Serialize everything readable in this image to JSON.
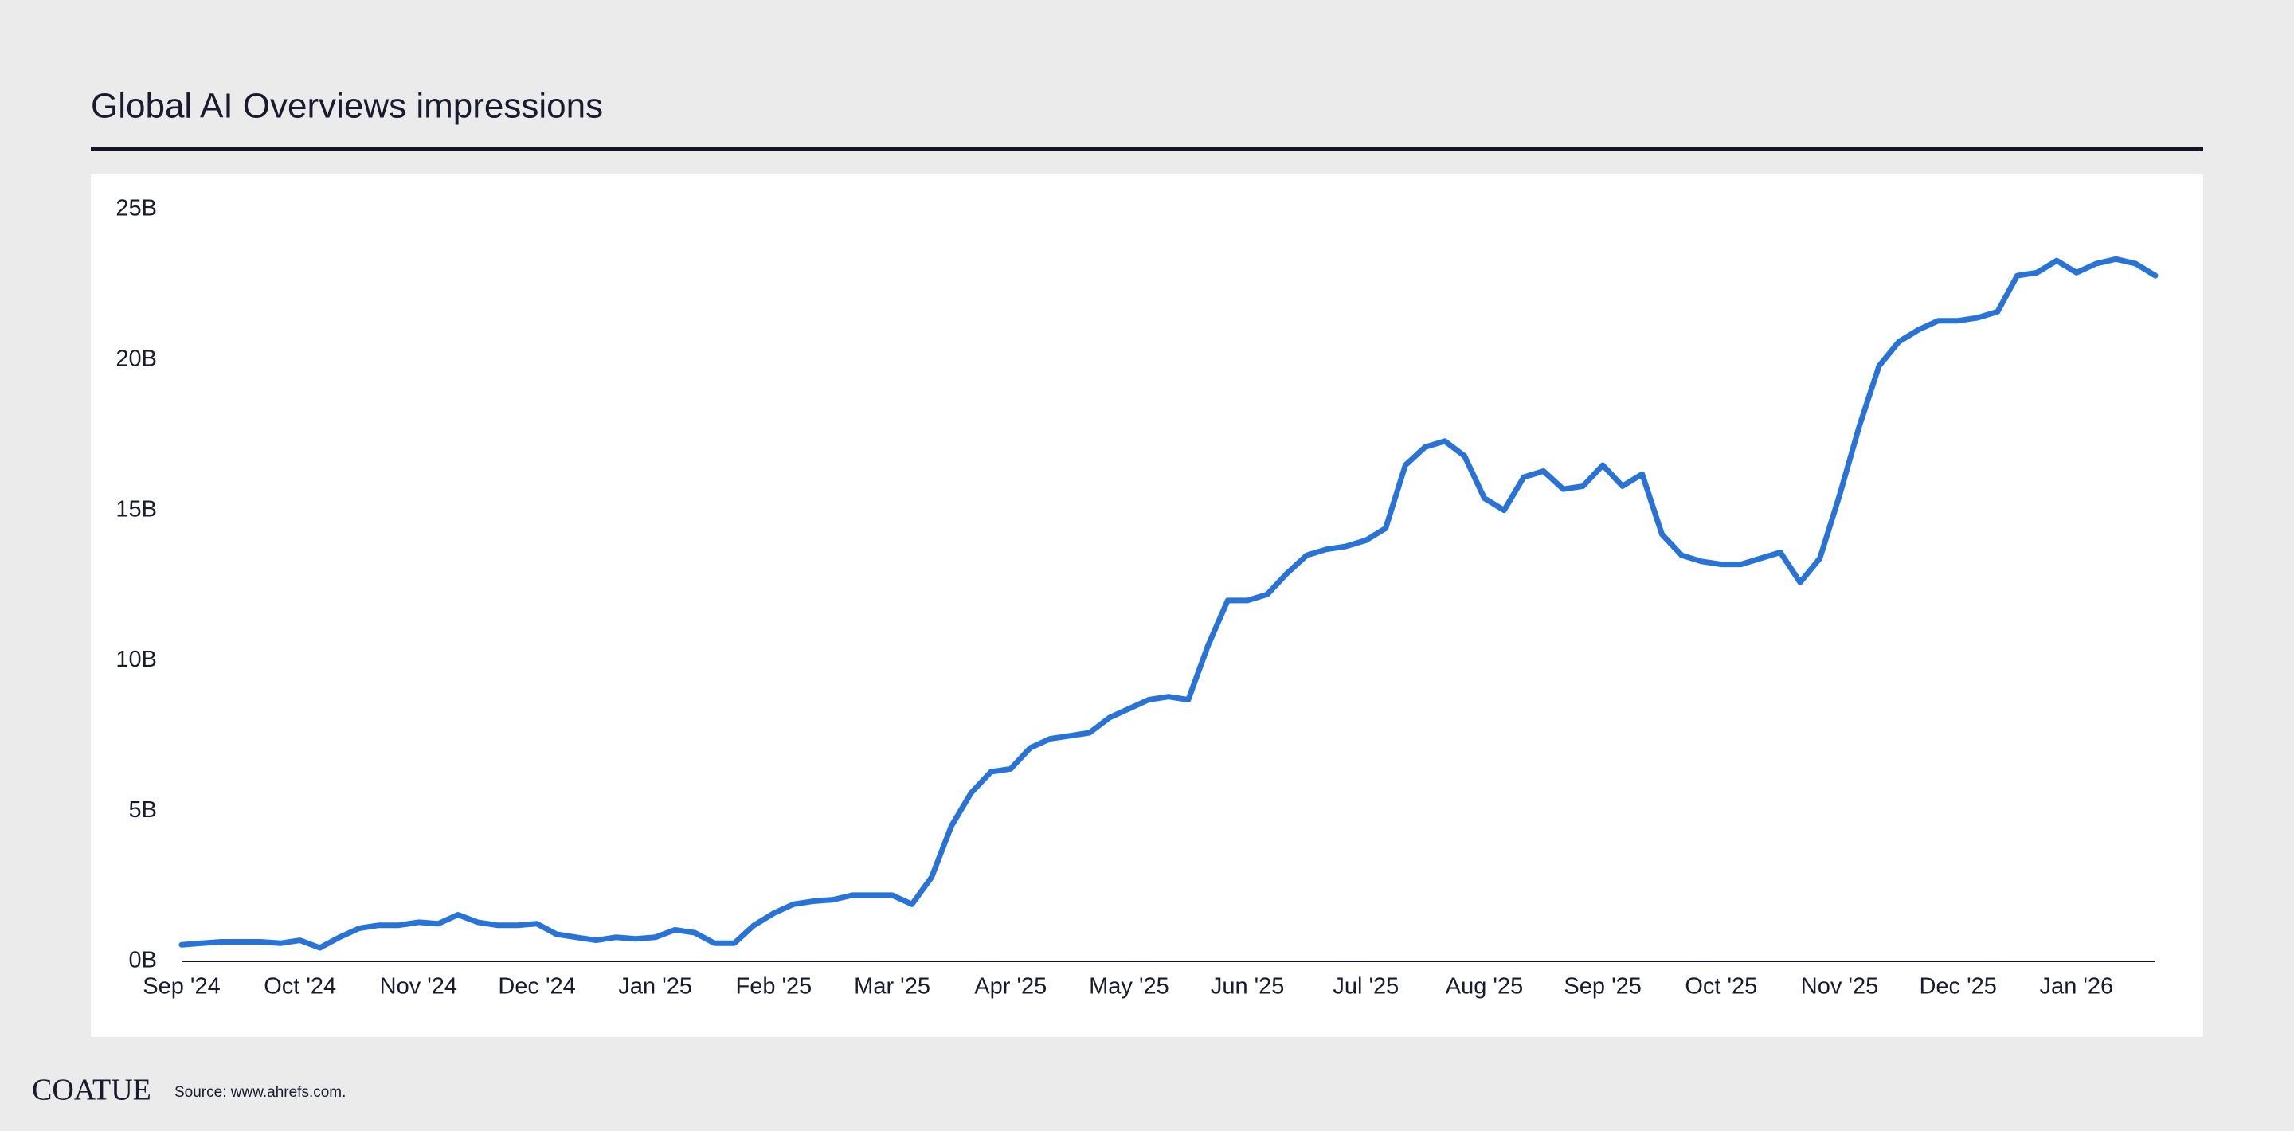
{
  "chart_data": {
    "type": "line",
    "title": "Global AI Overviews impressions",
    "source": "Source: www.ahrefs.com.",
    "brand": "COATUE",
    "categories": [
      "Sep '24",
      null,
      null,
      null,
      null,
      null,
      "Oct '24",
      null,
      null,
      null,
      null,
      null,
      "Nov '24",
      null,
      null,
      null,
      null,
      null,
      "Dec '24",
      null,
      null,
      null,
      null,
      null,
      "Jan '25",
      null,
      null,
      null,
      null,
      null,
      "Feb '25",
      null,
      null,
      null,
      null,
      null,
      "Mar '25",
      null,
      null,
      null,
      null,
      null,
      "Apr '25",
      null,
      null,
      null,
      null,
      null,
      "May '25",
      null,
      null,
      null,
      null,
      null,
      "Jun '25",
      null,
      null,
      null,
      null,
      null,
      "Jul '25",
      null,
      null,
      null,
      null,
      null,
      "Aug '25",
      null,
      null,
      null,
      null,
      null,
      "Sep '25",
      null,
      null,
      null,
      null,
      null,
      "Oct '25",
      null,
      null,
      null,
      null,
      null,
      "Nov '25",
      null,
      null,
      null,
      null,
      null,
      "Dec '25",
      null,
      null,
      null,
      null,
      null,
      "Jan '26",
      null,
      null,
      null,
      null
    ],
    "series": [
      {
        "name": "Global AI Overviews impressions",
        "color": "#2a73d6",
        "values": [
          0.55,
          0.6,
          0.65,
          0.65,
          0.65,
          0.6,
          0.7,
          0.45,
          0.8,
          1.1,
          1.2,
          1.2,
          1.3,
          1.25,
          1.55,
          1.3,
          1.2,
          1.2,
          1.25,
          0.9,
          0.8,
          0.7,
          0.8,
          0.75,
          0.8,
          1.05,
          0.95,
          0.6,
          0.6,
          1.2,
          1.6,
          1.9,
          2.0,
          2.05,
          2.2,
          2.2,
          2.2,
          1.9,
          2.8,
          4.5,
          5.6,
          6.3,
          6.4,
          7.1,
          7.4,
          7.5,
          7.6,
          8.1,
          8.4,
          8.7,
          8.8,
          8.7,
          10.5,
          12.0,
          12.0,
          12.2,
          12.9,
          13.5,
          13.7,
          13.8,
          14.0,
          14.4,
          16.5,
          17.1,
          17.3,
          16.8,
          15.4,
          15.0,
          16.1,
          16.3,
          15.7,
          15.8,
          16.5,
          15.8,
          16.2,
          14.2,
          13.5,
          13.3,
          13.2,
          13.2,
          13.4,
          13.6,
          12.6,
          13.4,
          15.5,
          17.8,
          19.8,
          20.6,
          21.0,
          21.3,
          21.3,
          21.4,
          21.6,
          22.8,
          22.9,
          23.3,
          22.9,
          23.2,
          23.35,
          23.2,
          22.8
        ]
      }
    ],
    "ylim": [
      0,
      25
    ],
    "yticks": [
      {
        "value": 0,
        "label": "0B"
      },
      {
        "value": 5,
        "label": "5B"
      },
      {
        "value": 10,
        "label": "10B"
      },
      {
        "value": 15,
        "label": "15B"
      },
      {
        "value": 20,
        "label": "20B"
      },
      {
        "value": 25,
        "label": "25B"
      }
    ],
    "grid": false
  }
}
